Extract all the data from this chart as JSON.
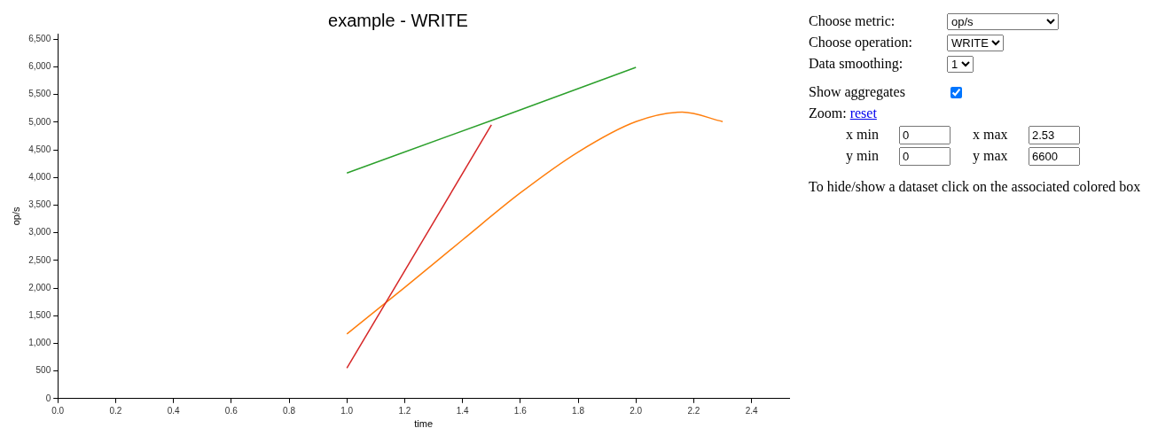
{
  "chart_data": {
    "type": "line",
    "title": "example - WRITE",
    "xlabel": "time",
    "ylabel": "op/s",
    "xlim": [
      0,
      2.53
    ],
    "ylim": [
      0,
      6600
    ],
    "xticks": [
      {
        "value": 0,
        "label": "0.0"
      },
      {
        "value": 0.2,
        "label": "0.2"
      },
      {
        "value": 0.4,
        "label": "0.4"
      },
      {
        "value": 0.6,
        "label": "0.6"
      },
      {
        "value": 0.8,
        "label": "0.8"
      },
      {
        "value": 1,
        "label": "1.0"
      },
      {
        "value": 1.2,
        "label": "1.2"
      },
      {
        "value": 1.4,
        "label": "1.4"
      },
      {
        "value": 1.6,
        "label": "1.6"
      },
      {
        "value": 1.8,
        "label": "1.8"
      },
      {
        "value": 2,
        "label": "2.0"
      },
      {
        "value": 2.2,
        "label": "2.2"
      },
      {
        "value": 2.4,
        "label": "2.4"
      }
    ],
    "yticks": [
      0,
      500,
      {
        "value": 1000,
        "label": "1,000"
      },
      {
        "value": 1500,
        "label": "1,500"
      },
      {
        "value": 2000,
        "label": "2,000"
      },
      {
        "value": 2500,
        "label": "2,500"
      },
      {
        "value": 3000,
        "label": "3,000"
      },
      {
        "value": 3500,
        "label": "3,500"
      },
      {
        "value": 4000,
        "label": "4,000"
      },
      {
        "value": 4500,
        "label": "4,500"
      },
      {
        "value": 5000,
        "label": "5,000"
      },
      {
        "value": 5500,
        "label": "5,500"
      },
      {
        "value": 6000,
        "label": "6,000"
      },
      {
        "value": 6500,
        "label": "6,500"
      }
    ],
    "grid": false,
    "legend": false,
    "marker": "none",
    "series": [
      {
        "color": "#2ca02c",
        "x": [
          1.0,
          1.5,
          2.0
        ],
        "values": [
          4080,
          5030,
          5990
        ]
      },
      {
        "color": "#d62728",
        "x": [
          1.0,
          1.5
        ],
        "values": [
          550,
          4950
        ]
      },
      {
        "color": "#ff7f0e",
        "x": [
          1.0,
          1.2,
          1.4,
          1.6,
          1.8,
          2.0,
          2.16,
          2.3
        ],
        "values": [
          1170,
          2010,
          2870,
          3720,
          4460,
          5010,
          5180,
          5010
        ]
      }
    ],
    "annotations": [
      "Choose metric:",
      "op/s",
      "Choose operation:",
      "WRITE",
      "Data smoothing:",
      "1",
      "Show aggregates",
      "Zoom:",
      "reset",
      "x min",
      "0",
      "x max",
      "2.53",
      "y min",
      "0",
      "y max",
      "6600",
      "To hide/show a dataset click on the associated colored box"
    ]
  }
}
